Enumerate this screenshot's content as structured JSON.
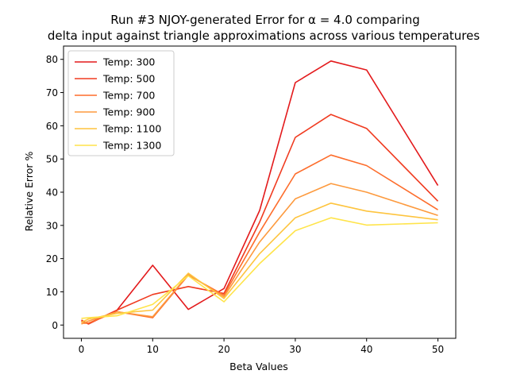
{
  "chart_data": {
    "type": "line",
    "title_line1": "Run #3 NJOY-generated Error for α = 4.0 comparing",
    "title_line2": "delta input against triangle approximations across various temperatures",
    "xlabel": "Beta Values",
    "ylabel": "Relative Error %",
    "xlim": [
      -2.5,
      52.5
    ],
    "ylim": [
      -4,
      84
    ],
    "xticks": [
      0,
      10,
      20,
      30,
      40,
      50
    ],
    "yticks": [
      0,
      10,
      20,
      30,
      40,
      50,
      60,
      70,
      80
    ],
    "grid": false,
    "legend_position": "upper-left",
    "x": [
      0,
      1,
      5,
      10,
      15,
      20,
      25,
      30,
      35,
      40,
      50
    ],
    "series": [
      {
        "name": "Temp: 300",
        "color": "#e31a1c",
        "values": [
          1.2,
          0.5,
          4.5,
          18.0,
          4.7,
          11.0,
          34.5,
          73.0,
          79.5,
          76.8,
          42.0
        ]
      },
      {
        "name": "Temp: 500",
        "color": "#f03b20",
        "values": [
          1.5,
          0.3,
          4.5,
          9.2,
          11.6,
          9.5,
          31.0,
          56.5,
          63.4,
          59.2,
          37.3
        ]
      },
      {
        "name": "Temp: 700",
        "color": "#fd6d2c",
        "values": [
          0.5,
          0.6,
          4.0,
          2.2,
          15.0,
          9.0,
          28.0,
          45.5,
          51.2,
          48.0,
          34.7
        ]
      },
      {
        "name": "Temp: 900",
        "color": "#fd9a3e",
        "values": [
          0.3,
          1.2,
          4.0,
          2.5,
          15.2,
          8.5,
          25.0,
          38.0,
          42.6,
          40.0,
          33.0
        ]
      },
      {
        "name": "Temp: 1100",
        "color": "#fec43e",
        "values": [
          0.8,
          1.8,
          3.5,
          4.5,
          15.6,
          8.0,
          21.5,
          32.3,
          36.7,
          34.3,
          31.7
        ]
      },
      {
        "name": "Temp: 1300",
        "color": "#ffe44a",
        "values": [
          2.0,
          2.2,
          2.8,
          6.2,
          14.8,
          7.0,
          18.5,
          28.4,
          32.3,
          30.1,
          30.8
        ]
      }
    ]
  }
}
